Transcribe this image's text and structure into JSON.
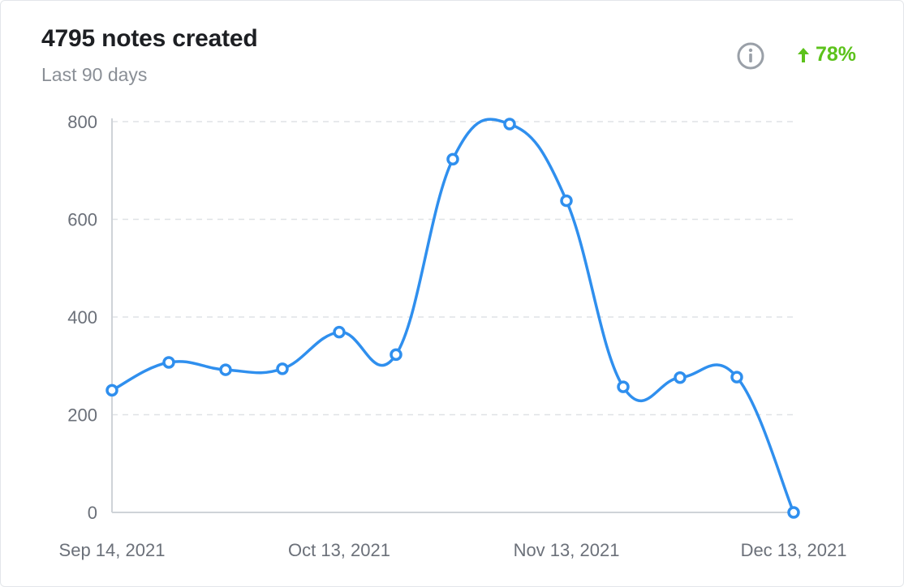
{
  "header": {
    "title": "4795 notes created",
    "subtitle": "Last 90 days",
    "info_icon": "info-circle-icon",
    "trend_icon": "arrow-up-icon",
    "trend_value": "78%"
  },
  "colors": {
    "line": "#2f8fee",
    "trend": "#5cc21b",
    "grid": "#dfe2e6",
    "axis": "#cfd3d8",
    "tick_text": "#6b7079",
    "info": "#9aa0a8"
  },
  "chart_data": {
    "type": "line",
    "title": "4795 notes created",
    "subtitle": "Last 90 days",
    "xlabel": "",
    "ylabel": "",
    "ylim": [
      0,
      800
    ],
    "yticks": [
      0,
      200,
      400,
      600,
      800
    ],
    "xtick_labels": [
      "Sep 14, 2021",
      "Oct 13, 2021",
      "Nov 13, 2021",
      "Dec 13, 2021"
    ],
    "grid": true,
    "smooth": true,
    "series": [
      {
        "values": [
          250,
          307,
          292,
          294,
          369,
          323,
          723,
          795,
          638,
          257,
          276,
          277,
          0
        ]
      }
    ]
  }
}
